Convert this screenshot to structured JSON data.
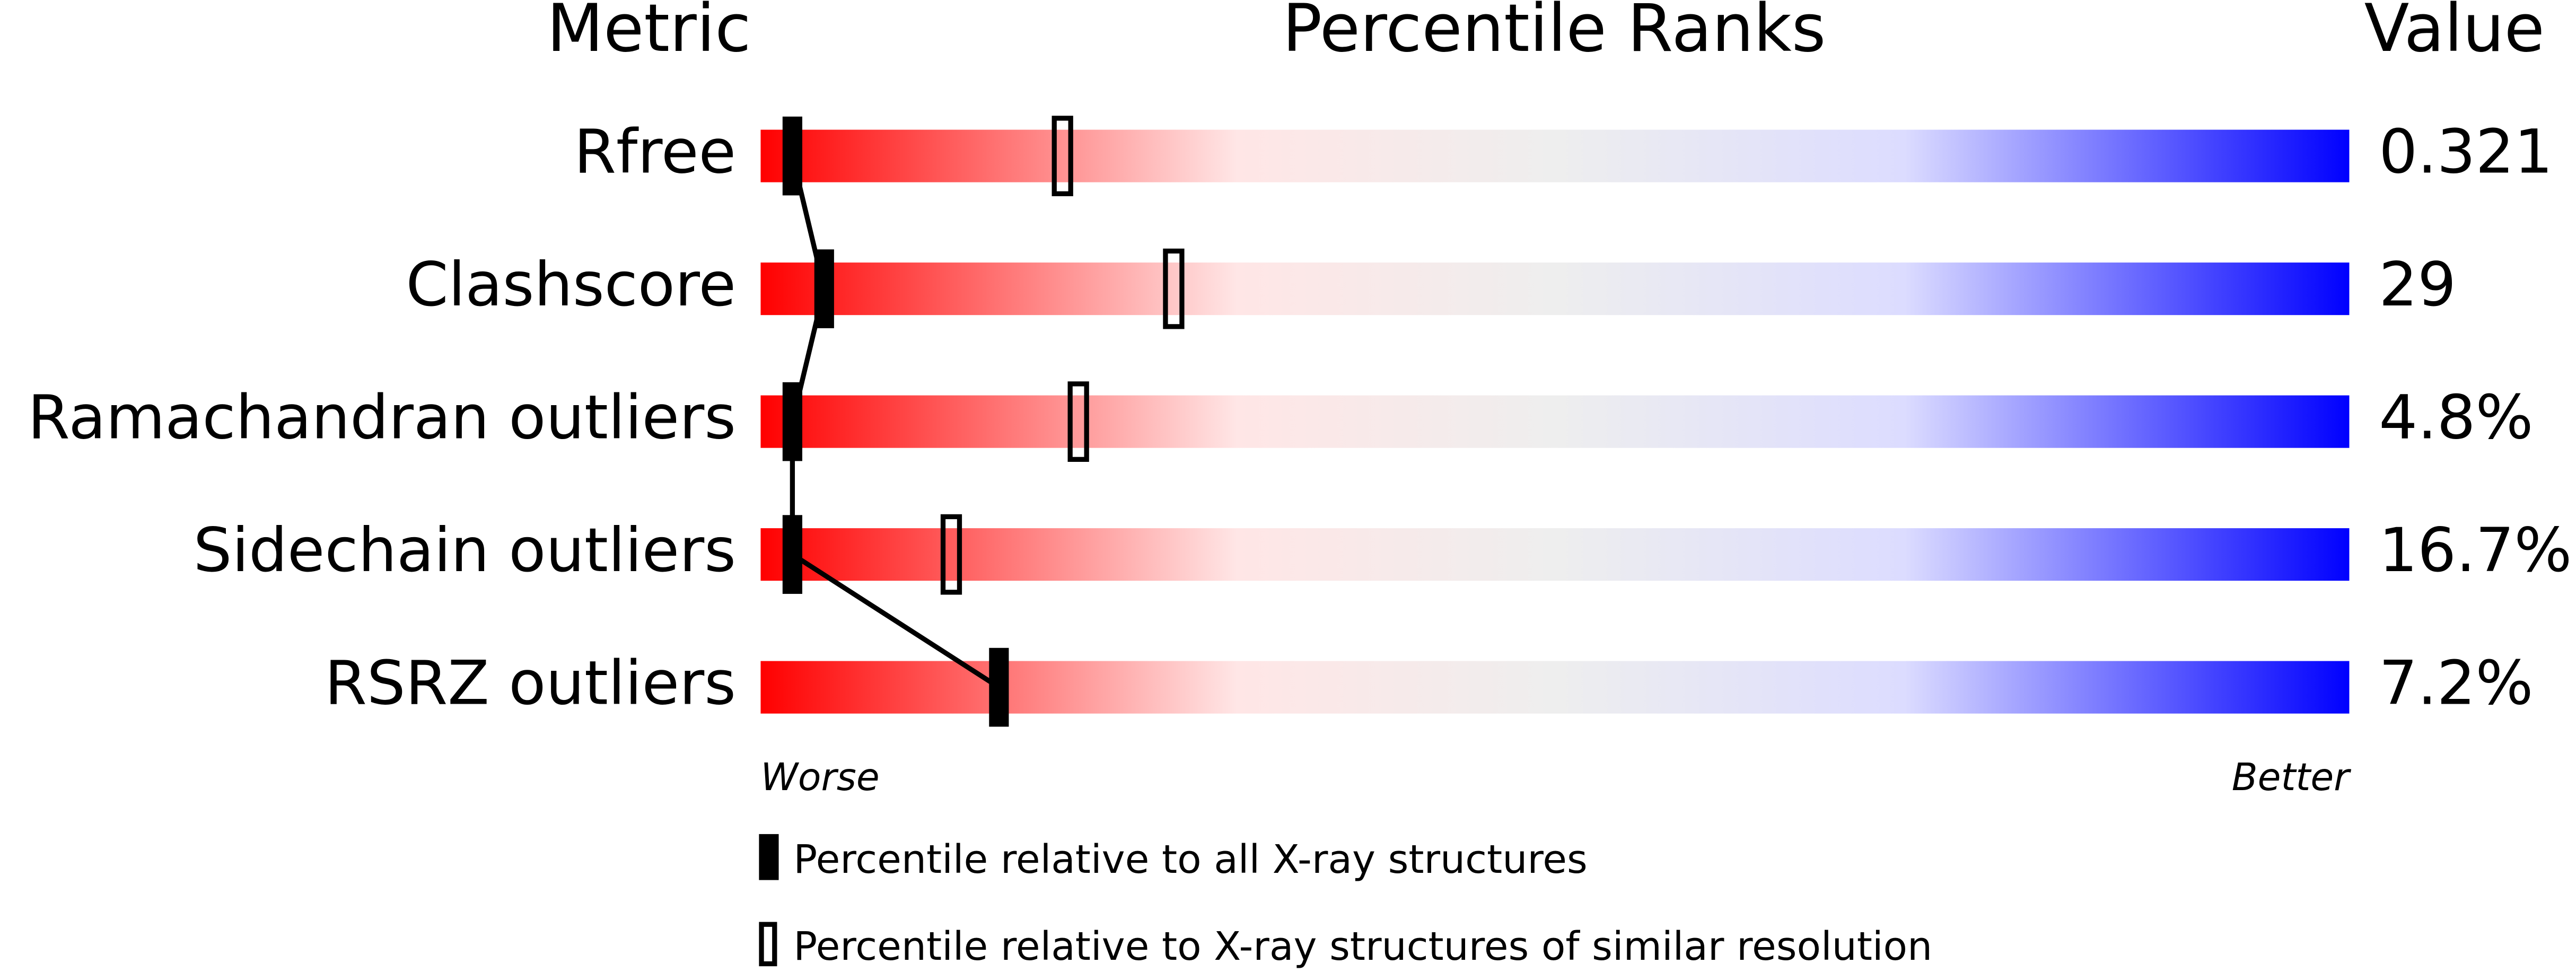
{
  "chart_data": {
    "type": "percentile-slider",
    "headers": [
      "Metric",
      "Percentile Ranks",
      "Value"
    ],
    "categories": [
      "Rfree",
      "Clashscore",
      "Ramachandran outliers",
      "Sidechain outliers",
      "RSRZ outliers"
    ],
    "metric_values": [
      "0.321",
      "29",
      "4.8%",
      "16.7%",
      "7.2%"
    ],
    "series": [
      {
        "name": "Percentile relative to all X-ray structures",
        "color": "#000000",
        "style": "filled",
        "values": [
          2,
          4,
          2,
          2,
          15
        ]
      },
      {
        "name": "Percentile relative to X-ray structures of similar resolution",
        "color": "#000000",
        "style": "open",
        "values": [
          19,
          26,
          20,
          12,
          null
        ]
      }
    ],
    "xlim": [
      0,
      100
    ],
    "x_low_label": "Worse",
    "x_high_label": "Better",
    "gradient": [
      "#ff0000",
      "#ffe6e6",
      "#eeeeee",
      "#dcdcff",
      "#0000ff"
    ]
  }
}
